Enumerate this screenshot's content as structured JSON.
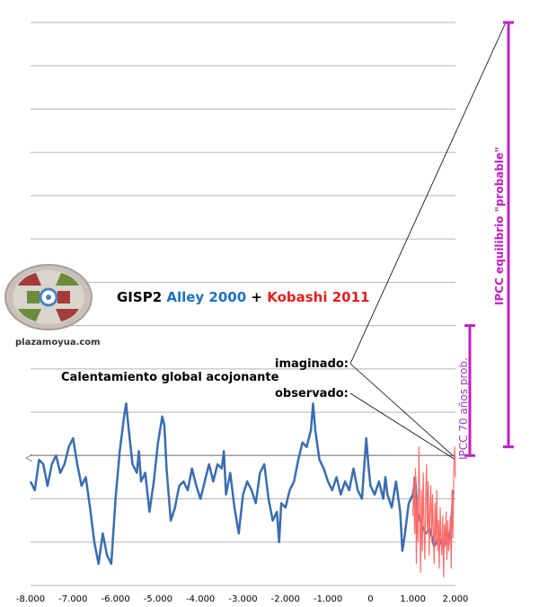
{
  "chart_data": {
    "type": "line",
    "title_parts": [
      {
        "text": "GISP2 ",
        "color": "#000000"
      },
      {
        "text": "Alley 2000",
        "color": "#1f6fbf"
      },
      {
        "text": " + ",
        "color": "#000000"
      },
      {
        "text": "Kobashi 2011",
        "color": "#e02020"
      }
    ],
    "x_ticks": [
      {
        "v": -8000,
        "label": "-8.000"
      },
      {
        "v": -7000,
        "label": "-7.000"
      },
      {
        "v": -6000,
        "label": "-6.000"
      },
      {
        "v": -5000,
        "label": "-5.000"
      },
      {
        "v": -4000,
        "label": "-4.000"
      },
      {
        "v": -3000,
        "label": "-3.000"
      },
      {
        "v": -2000,
        "label": "-2.000"
      },
      {
        "v": -1000,
        "label": "-1.000"
      },
      {
        "v": 0,
        "label": "0"
      },
      {
        "v": 1000,
        "label": "1.000"
      },
      {
        "v": 2000,
        "label": "2.000"
      }
    ],
    "xlim": [
      -8000,
      2000
    ],
    "ylim": [
      -3.0,
      10.0
    ],
    "grid": true,
    "gridlines_y": [
      -3,
      -2,
      -1,
      0,
      1,
      2,
      3,
      4,
      5,
      6,
      7,
      8,
      9,
      10
    ],
    "series": [
      {
        "name": "Alley 2000",
        "color": "#3a6db0",
        "points": [
          [
            -8000,
            -0.6
          ],
          [
            -7900,
            -0.8
          ],
          [
            -7800,
            -0.1
          ],
          [
            -7700,
            -0.2
          ],
          [
            -7600,
            -0.7
          ],
          [
            -7500,
            -0.2
          ],
          [
            -7400,
            0.0
          ],
          [
            -7300,
            -0.4
          ],
          [
            -7200,
            -0.2
          ],
          [
            -7100,
            0.2
          ],
          [
            -7000,
            0.4
          ],
          [
            -6900,
            -0.2
          ],
          [
            -6800,
            -0.7
          ],
          [
            -6700,
            -0.5
          ],
          [
            -6600,
            -1.2
          ],
          [
            -6500,
            -2.0
          ],
          [
            -6400,
            -2.5
          ],
          [
            -6300,
            -1.8
          ],
          [
            -6200,
            -2.3
          ],
          [
            -6100,
            -2.5
          ],
          [
            -6000,
            -1.0
          ],
          [
            -5900,
            0.1
          ],
          [
            -5800,
            0.9
          ],
          [
            -5750,
            1.2
          ],
          [
            -5700,
            0.7
          ],
          [
            -5600,
            -0.2
          ],
          [
            -5500,
            -0.4
          ],
          [
            -5450,
            0.1
          ],
          [
            -5400,
            -0.6
          ],
          [
            -5300,
            -0.4
          ],
          [
            -5200,
            -1.3
          ],
          [
            -5100,
            -0.6
          ],
          [
            -5000,
            0.3
          ],
          [
            -4900,
            0.9
          ],
          [
            -4850,
            0.7
          ],
          [
            -4800,
            -0.3
          ],
          [
            -4700,
            -1.5
          ],
          [
            -4600,
            -1.2
          ],
          [
            -4500,
            -0.7
          ],
          [
            -4400,
            -0.6
          ],
          [
            -4300,
            -0.8
          ],
          [
            -4200,
            -0.3
          ],
          [
            -4100,
            -0.7
          ],
          [
            -4000,
            -1.0
          ],
          [
            -3900,
            -0.6
          ],
          [
            -3800,
            -0.2
          ],
          [
            -3700,
            -0.6
          ],
          [
            -3600,
            -0.2
          ],
          [
            -3500,
            -0.3
          ],
          [
            -3450,
            0.1
          ],
          [
            -3400,
            -0.9
          ],
          [
            -3300,
            -0.4
          ],
          [
            -3200,
            -1.2
          ],
          [
            -3100,
            -1.8
          ],
          [
            -3000,
            -0.9
          ],
          [
            -2900,
            -0.6
          ],
          [
            -2800,
            -0.8
          ],
          [
            -2700,
            -1.1
          ],
          [
            -2600,
            -0.4
          ],
          [
            -2500,
            -0.2
          ],
          [
            -2400,
            -1.0
          ],
          [
            -2300,
            -1.5
          ],
          [
            -2200,
            -1.3
          ],
          [
            -2150,
            -2.0
          ],
          [
            -2100,
            -1.1
          ],
          [
            -2000,
            -1.2
          ],
          [
            -1900,
            -0.8
          ],
          [
            -1800,
            -0.6
          ],
          [
            -1700,
            -0.1
          ],
          [
            -1600,
            0.3
          ],
          [
            -1500,
            0.2
          ],
          [
            -1400,
            0.6
          ],
          [
            -1350,
            1.2
          ],
          [
            -1300,
            0.6
          ],
          [
            -1200,
            -0.1
          ],
          [
            -1100,
            -0.3
          ],
          [
            -1000,
            -0.6
          ],
          [
            -900,
            -0.8
          ],
          [
            -800,
            -0.5
          ],
          [
            -700,
            -0.9
          ],
          [
            -600,
            -0.6
          ],
          [
            -500,
            -0.8
          ],
          [
            -400,
            -0.3
          ],
          [
            -300,
            -0.8
          ],
          [
            -200,
            -1.0
          ],
          [
            -100,
            0.4
          ],
          [
            -50,
            -0.2
          ],
          [
            0,
            -0.7
          ],
          [
            100,
            -0.9
          ],
          [
            200,
            -0.6
          ],
          [
            300,
            -1.0
          ],
          [
            350,
            -0.5
          ],
          [
            400,
            -0.9
          ],
          [
            500,
            -1.2
          ],
          [
            600,
            -0.6
          ],
          [
            700,
            -1.3
          ],
          [
            750,
            -2.2
          ],
          [
            800,
            -1.9
          ],
          [
            900,
            -1.1
          ],
          [
            1000,
            -0.9
          ],
          [
            1050,
            -0.5
          ],
          [
            1100,
            -1.3
          ],
          [
            1200,
            -1.6
          ],
          [
            1300,
            -1.8
          ],
          [
            1400,
            -1.7
          ],
          [
            1500,
            -2.1
          ],
          [
            1600,
            -1.9
          ],
          [
            1700,
            -2.1
          ],
          [
            1800,
            -2.0
          ],
          [
            1850,
            -1.9
          ],
          [
            1900,
            -1.6
          ],
          [
            1950,
            -0.8
          ]
        ]
      },
      {
        "name": "Kobashi 2011",
        "color": "#ff6b6b",
        "points": [
          [
            1000,
            -1.4
          ],
          [
            1020,
            -0.5
          ],
          [
            1040,
            -1.8
          ],
          [
            1060,
            -0.3
          ],
          [
            1080,
            -2.5
          ],
          [
            1100,
            -1.0
          ],
          [
            1120,
            -2.0
          ],
          [
            1140,
            0.2
          ],
          [
            1160,
            -1.2
          ],
          [
            1180,
            -2.7
          ],
          [
            1200,
            -0.8
          ],
          [
            1220,
            -2.2
          ],
          [
            1240,
            -0.4
          ],
          [
            1260,
            -1.6
          ],
          [
            1280,
            -2.4
          ],
          [
            1300,
            -1.0
          ],
          [
            1320,
            -0.2
          ],
          [
            1340,
            -1.8
          ],
          [
            1360,
            -0.6
          ],
          [
            1380,
            -2.3
          ],
          [
            1400,
            -1.3
          ],
          [
            1420,
            -0.7
          ],
          [
            1440,
            -2.0
          ],
          [
            1460,
            -0.9
          ],
          [
            1480,
            -1.7
          ],
          [
            1500,
            -2.5
          ],
          [
            1520,
            -1.1
          ],
          [
            1540,
            -2.0
          ],
          [
            1560,
            -0.8
          ],
          [
            1580,
            -2.2
          ],
          [
            1600,
            -1.5
          ],
          [
            1620,
            -2.6
          ],
          [
            1640,
            -1.2
          ],
          [
            1660,
            -1.9
          ],
          [
            1680,
            -2.3
          ],
          [
            1700,
            -1.4
          ],
          [
            1720,
            -2.8
          ],
          [
            1740,
            -1.6
          ],
          [
            1760,
            -2.1
          ],
          [
            1780,
            -1.3
          ],
          [
            1800,
            -2.4
          ],
          [
            1820,
            -1.5
          ],
          [
            1840,
            -2.2
          ],
          [
            1860,
            -2.0
          ],
          [
            1880,
            -1.4
          ],
          [
            1900,
            -2.6
          ],
          [
            1920,
            -0.8
          ],
          [
            1940,
            -1.9
          ],
          [
            1960,
            -0.4
          ],
          [
            1980,
            0.2
          ],
          [
            2000,
            -0.5
          ]
        ]
      }
    ],
    "annotations": {
      "calentamiento": "Calentamiento global acojonante",
      "imaginado": "imaginado:",
      "observado": "observado:",
      "ipcc_70": "IPCC 70 años prob.",
      "ipcc_equilibrio": "IPCC equilibrio \"probable\"",
      "ipcc_70_range": [
        0,
        3
      ],
      "ipcc_equilibrio_range": [
        0,
        10
      ]
    }
  },
  "logo": {
    "site": "plazamoyua.com"
  }
}
